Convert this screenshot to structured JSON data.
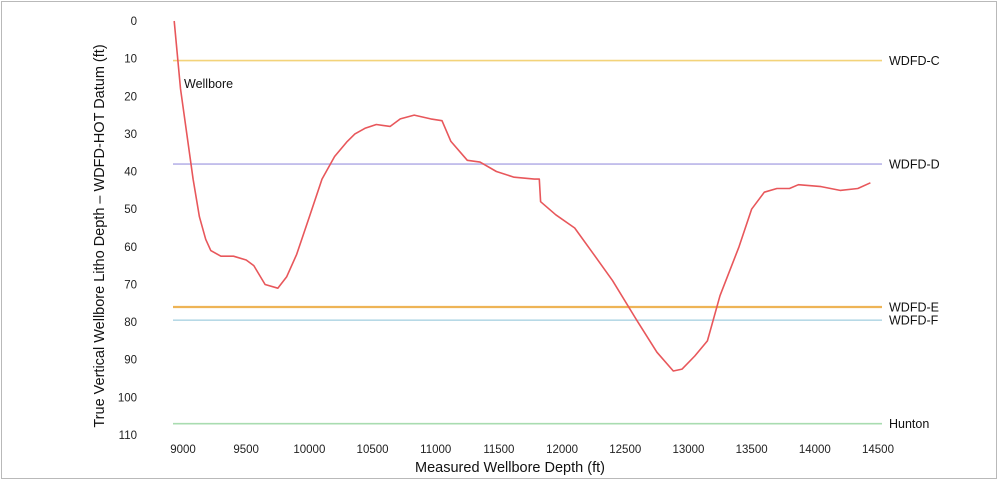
{
  "chart_data": {
    "type": "line",
    "title": "",
    "xlabel": "Measured Wellbore Depth (ft)",
    "ylabel": "True Vertical Wellbore Litho Depth – WDFD-HOT Datum (ft)",
    "xlim": [
      8900,
      14500
    ],
    "ylim": [
      0,
      110
    ],
    "y_inverted": true,
    "grid": false,
    "xticks": [
      "9000",
      "9500",
      "10000",
      "10500",
      "11000",
      "11500",
      "12000",
      "12500",
      "13000",
      "13500",
      "14000",
      "14500"
    ],
    "yticks": [
      "0",
      "10",
      "20",
      "30",
      "40",
      "50",
      "60",
      "70",
      "80",
      "90",
      "100",
      "110"
    ],
    "annotation": "Wellbore",
    "wellbore": {
      "color": "#e8575b",
      "x": [
        8930,
        8980,
        9030,
        9080,
        9130,
        9180,
        9220,
        9300,
        9400,
        9500,
        9560,
        9650,
        9750,
        9820,
        9900,
        10000,
        10100,
        10200,
        10300,
        10360,
        10440,
        10530,
        10640,
        10720,
        10830,
        10960,
        11050,
        11120,
        11250,
        11350,
        11480,
        11620,
        11780,
        11820,
        11830,
        11950,
        12100,
        12250,
        12400,
        12600,
        12750,
        12880,
        12950,
        13050,
        13150,
        13250,
        13400,
        13500,
        13600,
        13700,
        13800,
        13870,
        14050,
        14200,
        14340,
        14440
      ],
      "y": [
        0,
        18,
        30,
        42,
        52,
        58,
        61,
        62.5,
        62.5,
        63.5,
        65,
        70,
        71,
        68,
        62,
        52,
        42,
        36,
        32,
        30,
        28.5,
        27.5,
        28,
        26,
        25,
        26,
        26.5,
        32,
        37,
        37.5,
        40,
        41.5,
        42,
        42,
        48,
        51.5,
        55,
        62,
        69,
        80,
        88,
        93,
        92.5,
        89,
        85,
        73,
        60,
        50,
        45.5,
        44.5,
        44.5,
        43.5,
        44,
        45,
        44.5,
        43
      ]
    },
    "formations": [
      {
        "name": "WDFD-C",
        "depth": 10.5,
        "color": "#f3d37a"
      },
      {
        "name": "WDFD-D",
        "depth": 38,
        "color": "#b9b4e8"
      },
      {
        "name": "WDFD-E",
        "depth": 76,
        "color": "#eeb456"
      },
      {
        "name": "WDFD-F",
        "depth": 79.5,
        "color": "#b7d9e6"
      },
      {
        "name": "Hunton",
        "depth": 107,
        "color": "#a9dcb0"
      }
    ]
  }
}
